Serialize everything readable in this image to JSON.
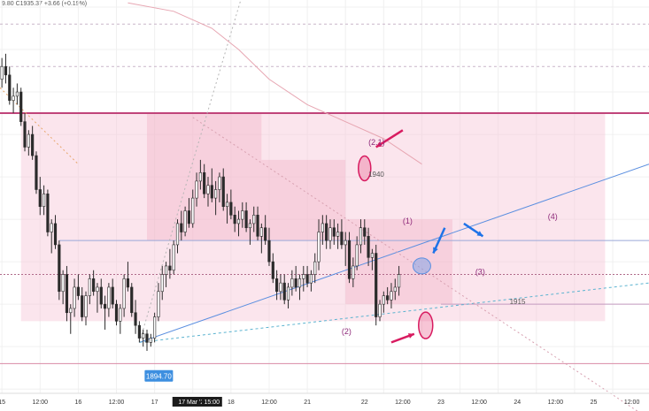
{
  "header": {
    "ohlc_text": "9.80 C1935.37 +3.66 (+0.19%)"
  },
  "colors": {
    "bull": "#ffffff",
    "bear": "#2b2b2b",
    "wick": "#2b2b2b",
    "zone": "#f7c5d6",
    "zone_dark": "#f0a9c1",
    "resistance": "#c0447a",
    "trendline": "#5b8fe0",
    "arrow_red": "#d81b60",
    "arrow_blue": "#1e73e8",
    "label_purple": "#8e2a7a",
    "ma": "#e7a6b2",
    "axis_text": "#333333"
  },
  "chart_data": {
    "type": "candlestick",
    "title": "",
    "y_range": [
      1884,
      1975
    ],
    "x_axis": {
      "ticks": [
        {
          "i": 0,
          "label": "15"
        },
        {
          "i": 10,
          "label": "12:00"
        },
        {
          "i": 20,
          "label": "16"
        },
        {
          "i": 30,
          "label": "12:00"
        },
        {
          "i": 40,
          "label": "17"
        },
        {
          "i": 50,
          "label": "17 Mar '22",
          "highlight": true
        },
        {
          "i": 55,
          "label": "15:00",
          "highlight": true
        },
        {
          "i": 60,
          "label": "18"
        },
        {
          "i": 70,
          "label": "12:00"
        },
        {
          "i": 80,
          "label": "21"
        },
        {
          "i": 95,
          "label": "22"
        },
        {
          "i": 105,
          "label": "12:00"
        },
        {
          "i": 115,
          "label": "23"
        },
        {
          "i": 125,
          "label": "12:00"
        },
        {
          "i": 135,
          "label": "24"
        },
        {
          "i": 145,
          "label": "12:00"
        },
        {
          "i": 155,
          "label": "25"
        },
        {
          "i": 165,
          "label": "12:00"
        }
      ]
    },
    "candles": [
      [
        1958,
        1963,
        1956,
        1961
      ],
      [
        1961,
        1964,
        1957,
        1959
      ],
      [
        1959,
        1961,
        1952,
        1953
      ],
      [
        1953,
        1956,
        1950,
        1954
      ],
      [
        1954,
        1957,
        1952,
        1955
      ],
      [
        1955,
        1956,
        1947,
        1948
      ],
      [
        1948,
        1950,
        1941,
        1942
      ],
      [
        1942,
        1946,
        1940,
        1945
      ],
      [
        1945,
        1947,
        1939,
        1940
      ],
      [
        1940,
        1941,
        1931,
        1932
      ],
      [
        1932,
        1935,
        1926,
        1928
      ],
      [
        1928,
        1933,
        1926,
        1931
      ],
      [
        1931,
        1932,
        1921,
        1922
      ],
      [
        1922,
        1925,
        1917,
        1924
      ],
      [
        1924,
        1926,
        1918,
        1919
      ],
      [
        1919,
        1920,
        1906,
        1908
      ],
      [
        1908,
        1913,
        1905,
        1912
      ],
      [
        1912,
        1914,
        1901,
        1903
      ],
      [
        1903,
        1905,
        1898,
        1904
      ],
      [
        1904,
        1911,
        1902,
        1909
      ],
      [
        1909,
        1912,
        1906,
        1907
      ],
      [
        1907,
        1909,
        1901,
        1902
      ],
      [
        1902,
        1908,
        1900,
        1907
      ],
      [
        1907,
        1912,
        1905,
        1911
      ],
      [
        1911,
        1913,
        1907,
        1908
      ],
      [
        1908,
        1910,
        1903,
        1909
      ],
      [
        1909,
        1911,
        1904,
        1905
      ],
      [
        1905,
        1907,
        1899,
        1904
      ],
      [
        1904,
        1910,
        1902,
        1909
      ],
      [
        1909,
        1911,
        1904,
        1905
      ],
      [
        1905,
        1906,
        1900,
        1901
      ],
      [
        1901,
        1905,
        1898,
        1904
      ],
      [
        1904,
        1912,
        1902,
        1911
      ],
      [
        1911,
        1915,
        1908,
        1909
      ],
      [
        1909,
        1910,
        1902,
        1903
      ],
      [
        1903,
        1906,
        1898,
        1900
      ],
      [
        1900,
        1901,
        1896,
        1897
      ],
      [
        1897,
        1899,
        1895,
        1898
      ],
      [
        1898,
        1899,
        1894,
        1896
      ],
      [
        1896,
        1898,
        1895,
        1897
      ],
      [
        1897,
        1903,
        1896,
        1902
      ],
      [
        1902,
        1910,
        1901,
        1908
      ],
      [
        1908,
        1914,
        1906,
        1912
      ],
      [
        1912,
        1915,
        1909,
        1914
      ],
      [
        1914,
        1918,
        1911,
        1913
      ],
      [
        1913,
        1920,
        1912,
        1919
      ],
      [
        1919,
        1925,
        1917,
        1924
      ],
      [
        1924,
        1927,
        1920,
        1922
      ],
      [
        1922,
        1928,
        1921,
        1927
      ],
      [
        1927,
        1930,
        1923,
        1924
      ],
      [
        1924,
        1932,
        1923,
        1930
      ],
      [
        1930,
        1936,
        1928,
        1934
      ],
      [
        1934,
        1939,
        1932,
        1936
      ],
      [
        1936,
        1938,
        1930,
        1931
      ],
      [
        1931,
        1935,
        1928,
        1933
      ],
      [
        1933,
        1937,
        1929,
        1930
      ],
      [
        1930,
        1934,
        1926,
        1932
      ],
      [
        1932,
        1936,
        1929,
        1935
      ],
      [
        1935,
        1937,
        1927,
        1928
      ],
      [
        1928,
        1931,
        1924,
        1929
      ],
      [
        1929,
        1932,
        1925,
        1926
      ],
      [
        1926,
        1928,
        1922,
        1924
      ],
      [
        1924,
        1927,
        1921,
        1925
      ],
      [
        1925,
        1929,
        1923,
        1927
      ],
      [
        1927,
        1929,
        1922,
        1923
      ],
      [
        1923,
        1925,
        1919,
        1924
      ],
      [
        1924,
        1928,
        1922,
        1926
      ],
      [
        1926,
        1928,
        1920,
        1921
      ],
      [
        1921,
        1924,
        1917,
        1923
      ],
      [
        1923,
        1926,
        1919,
        1920
      ],
      [
        1920,
        1923,
        1914,
        1915
      ],
      [
        1915,
        1917,
        1910,
        1911
      ],
      [
        1911,
        1913,
        1906,
        1908
      ],
      [
        1908,
        1912,
        1906,
        1910
      ],
      [
        1910,
        1912,
        1905,
        1906
      ],
      [
        1906,
        1910,
        1904,
        1909
      ],
      [
        1909,
        1913,
        1907,
        1911
      ],
      [
        1911,
        1914,
        1908,
        1909
      ],
      [
        1909,
        1912,
        1906,
        1911
      ],
      [
        1911,
        1914,
        1908,
        1912
      ],
      [
        1912,
        1914,
        1909,
        1910
      ],
      [
        1910,
        1913,
        1908,
        1912
      ],
      [
        1912,
        1917,
        1910,
        1915
      ],
      [
        1915,
        1925,
        1913,
        1922
      ],
      [
        1922,
        1926,
        1919,
        1924
      ],
      [
        1924,
        1926,
        1918,
        1920
      ],
      [
        1920,
        1925,
        1918,
        1923
      ],
      [
        1923,
        1925,
        1919,
        1921
      ],
      [
        1921,
        1924,
        1918,
        1922
      ],
      [
        1922,
        1925,
        1918,
        1919
      ],
      [
        1919,
        1922,
        1914,
        1920
      ],
      [
        1920,
        1922,
        1910,
        1911
      ],
      [
        1911,
        1916,
        1909,
        1914
      ],
      [
        1914,
        1921,
        1913,
        1919
      ],
      [
        1919,
        1925,
        1917,
        1923
      ],
      [
        1923,
        1925,
        1919,
        1921
      ],
      [
        1921,
        1923,
        1914,
        1916
      ],
      [
        1916,
        1918,
        1913,
        1917
      ],
      [
        1917,
        1919,
        1900,
        1902
      ],
      [
        1902,
        1906,
        1901,
        1905
      ],
      [
        1905,
        1908,
        1903,
        1907
      ],
      [
        1907,
        1909,
        1905,
        1906
      ],
      [
        1906,
        1910,
        1904,
        1908
      ],
      [
        1908,
        1911,
        1906,
        1909
      ],
      [
        1909,
        1914,
        1907,
        1912
      ]
    ],
    "zones": [
      {
        "i0": 5,
        "i1": 158,
        "y0": 1901,
        "y1": 1950
      },
      {
        "i0": 38,
        "i1": 68,
        "y0": 1920,
        "y1": 1950
      },
      {
        "i0": 68,
        "i1": 90,
        "y0": 1920,
        "y1": 1939
      },
      {
        "i0": 90,
        "i1": 118,
        "y0": 1905,
        "y1": 1925
      }
    ],
    "lines": {
      "resistance": 1950,
      "support_high": 1920,
      "mid_dashed": 1912,
      "level_1915": 1905,
      "bottom": 1891
    },
    "annotations": [
      {
        "text": "(2.1)",
        "i": 96,
        "y": 1942.5
      },
      {
        "text": "1940",
        "i": 96,
        "y": 1935
      },
      {
        "text": "(1)",
        "i": 105,
        "y": 1924
      },
      {
        "text": "(4)",
        "i": 143,
        "y": 1925
      },
      {
        "text": "(3)",
        "i": 124,
        "y": 1912
      },
      {
        "text": "1915",
        "i": 133,
        "y": 1905
      },
      {
        "text": "(2)",
        "i": 89,
        "y": 1898
      }
    ],
    "price_label": {
      "text": "1894.70",
      "i": 36,
      "y": 1888
    },
    "tick_labels_prices": []
  }
}
